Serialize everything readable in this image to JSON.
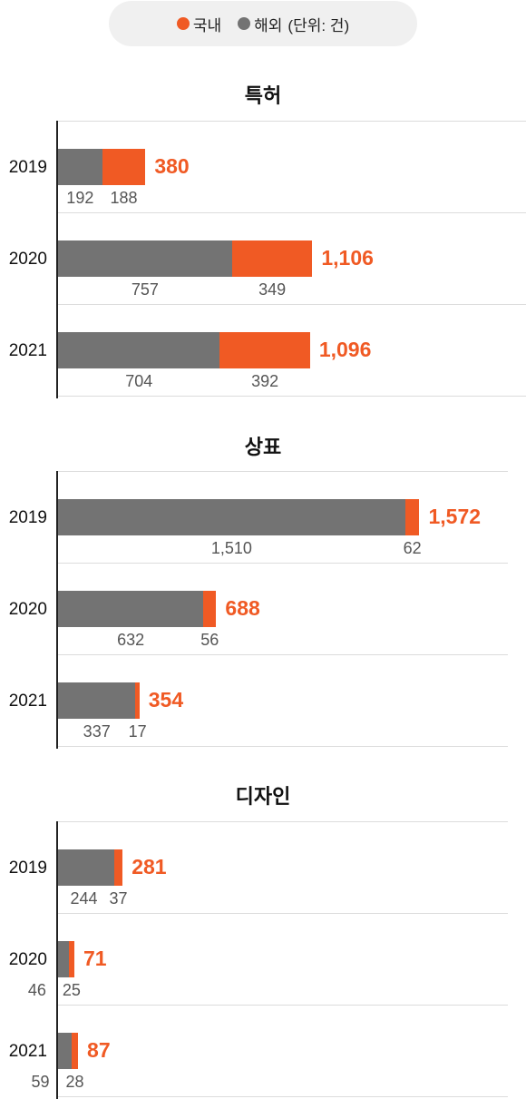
{
  "legend": {
    "domestic_label": "국내",
    "overseas_label": "해외",
    "unit_label": "(단위: 건)"
  },
  "colors": {
    "domestic": "#f05a24",
    "overseas": "#737373"
  },
  "chart_data": [
    {
      "type": "bar",
      "stacked": true,
      "orientation": "horizontal",
      "title": "특허",
      "categories": [
        "2019",
        "2020",
        "2021"
      ],
      "series": [
        {
          "name": "해외",
          "values": [
            192,
            757,
            704
          ]
        },
        {
          "name": "국내",
          "values": [
            188,
            349,
            392
          ]
        }
      ],
      "totals": [
        "380",
        "1,106",
        "1,096"
      ],
      "value_labels": [
        [
          "192",
          "188"
        ],
        [
          "757",
          "349"
        ],
        [
          "704",
          "392"
        ]
      ]
    },
    {
      "type": "bar",
      "stacked": true,
      "orientation": "horizontal",
      "title": "상표",
      "categories": [
        "2019",
        "2020",
        "2021"
      ],
      "series": [
        {
          "name": "해외",
          "values": [
            1510,
            632,
            337
          ]
        },
        {
          "name": "국내",
          "values": [
            62,
            56,
            17
          ]
        }
      ],
      "totals": [
        "1,572",
        "688",
        "354"
      ],
      "value_labels": [
        [
          "1,510",
          "62"
        ],
        [
          "632",
          "56"
        ],
        [
          "337",
          "17"
        ]
      ]
    },
    {
      "type": "bar",
      "stacked": true,
      "orientation": "horizontal",
      "title": "디자인",
      "categories": [
        "2019",
        "2020",
        "2021"
      ],
      "series": [
        {
          "name": "해외",
          "values": [
            244,
            46,
            59
          ]
        },
        {
          "name": "국내",
          "values": [
            37,
            25,
            28
          ]
        }
      ],
      "totals": [
        "281",
        "71",
        "87"
      ],
      "value_labels": [
        [
          "244",
          "37"
        ],
        [
          "46",
          "25"
        ],
        [
          "59",
          "28"
        ]
      ]
    }
  ]
}
